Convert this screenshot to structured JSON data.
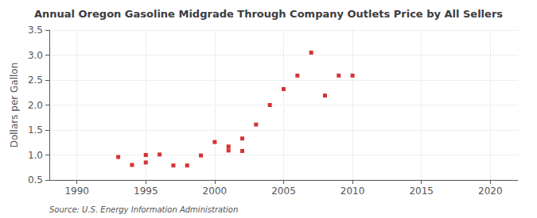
{
  "chart_data": {
    "type": "scatter",
    "title": "Annual Oregon Gasoline Midgrade Through Company Outlets Price by All Sellers",
    "ylabel": "Dollars per Gallon",
    "source": "Source: U.S. Energy Information Administration",
    "x": [
      1993,
      1994,
      1995,
      1995,
      1996,
      1997,
      1998,
      1999,
      2000,
      2001,
      2001,
      2002,
      2002,
      2003,
      2004,
      2005,
      2006,
      2007,
      2008,
      2009,
      2010
    ],
    "values": [
      0.96,
      0.8,
      0.85,
      1.0,
      1.01,
      0.79,
      0.79,
      0.99,
      1.26,
      1.17,
      1.09,
      1.33,
      1.08,
      1.61,
      2.0,
      2.32,
      2.59,
      3.05,
      2.19,
      2.59,
      2.59
    ],
    "color": "#cc0000",
    "marker": "square",
    "xlim": [
      1988,
      2022
    ],
    "ylim": [
      0.5,
      3.5
    ],
    "xticks": [
      1990,
      1995,
      2000,
      2005,
      2010,
      2015,
      2020
    ],
    "yticks": [
      0.5,
      {
        "value": 1.0,
        "label": "1.0"
      },
      1.5,
      {
        "value": 2.0,
        "label": "2.0"
      },
      2.5,
      {
        "value": 3.0,
        "label": "3.0"
      },
      3.5
    ],
    "grid": true
  }
}
